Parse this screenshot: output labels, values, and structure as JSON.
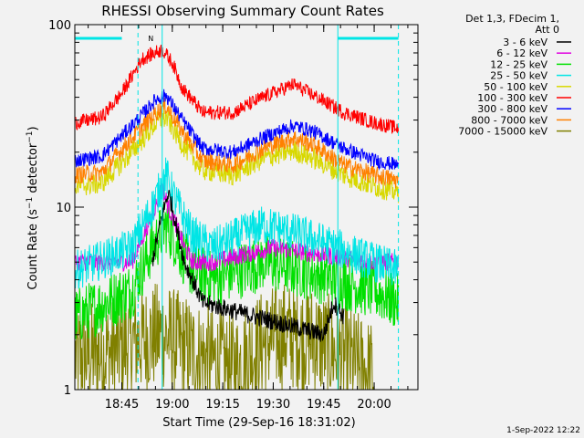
{
  "chart_data": {
    "type": "line",
    "title": "RHESSI Observing Summary Count Rates",
    "xlabel": "Start Time (29-Sep-16 18:31:02)",
    "ylabel": "Count Rate (s⁻¹ detector⁻¹)",
    "ylabel_parts": {
      "base": "Count Rate (s",
      "sup1": "−1",
      "mid": " detector",
      "sup2": "−1",
      "end": ")"
    },
    "yscale": "log",
    "ylim": [
      1,
      100
    ],
    "xlim": [
      18.5172,
      20.2167
    ],
    "x_unit": "hours (UT)",
    "x_ticks": [
      {
        "t": 18.75,
        "label": "18:45"
      },
      {
        "t": 19.0,
        "label": "19:00"
      },
      {
        "t": 19.25,
        "label": "19:15"
      },
      {
        "t": 19.5,
        "label": "19:30"
      },
      {
        "t": 19.75,
        "label": "19:45"
      },
      {
        "t": 20.0,
        "label": "20:00"
      }
    ],
    "y_ticks": [
      {
        "v": 1,
        "label": "1"
      },
      {
        "v": 10,
        "label": "10"
      },
      {
        "v": 100,
        "label": "100"
      }
    ],
    "legend_header": [
      "Det 1,3, FDecim 1,",
      "Att 0"
    ],
    "legend_position": "right",
    "timestamp": "1-Sep-2022 12:22",
    "markers": {
      "vlines_solid": [
        18.95,
        19.82
      ],
      "vlines_dashed": [
        18.83,
        20.12
      ],
      "bars": [
        [
          18.52,
          18.75
        ],
        [
          19.82,
          20.12
        ]
      ],
      "n_label": "N",
      "n_label_t": 18.88,
      "color": "#00e5e5"
    },
    "series": [
      {
        "name": "3 - 6 keV",
        "color": "#000000",
        "x": [
          18.9,
          18.95,
          18.98,
          19.0,
          19.03,
          19.06,
          19.1,
          19.15,
          19.75,
          19.8,
          19.85
        ],
        "y": [
          5,
          9,
          12,
          10,
          7,
          5,
          4,
          3,
          2,
          3,
          2.5
        ]
      },
      {
        "name": "6 - 12 keV",
        "color": "#e000e0",
        "x": [
          18.52,
          18.8,
          18.9,
          18.95,
          18.98,
          19.02,
          19.06,
          19.1,
          19.2,
          19.5,
          20.0,
          20.12
        ],
        "y": [
          5,
          5,
          9,
          13,
          10,
          8,
          6,
          5,
          5,
          6,
          5,
          5
        ]
      },
      {
        "name": "12 - 25 keV",
        "color": "#00e000",
        "x": [
          18.52,
          18.8,
          18.9,
          18.97,
          19.0,
          19.05,
          19.1,
          19.2,
          19.45,
          19.65,
          20.0,
          20.12
        ],
        "y": [
          2.5,
          3.5,
          6,
          8,
          7,
          5.5,
          4.5,
          4,
          5,
          4.5,
          3.5,
          3
        ]
      },
      {
        "name": "25 - 50 keV",
        "color": "#00e5e5",
        "x": [
          18.52,
          18.8,
          18.9,
          18.97,
          19.0,
          19.05,
          19.1,
          19.2,
          19.45,
          19.65,
          20.0,
          20.12
        ],
        "y": [
          4.5,
          6,
          10,
          15,
          12,
          9,
          7,
          6,
          8,
          7,
          5,
          4.5
        ]
      },
      {
        "name": "50 - 100 keV",
        "color": "#d8d800",
        "x": [
          18.52,
          18.65,
          18.8,
          18.92,
          18.97,
          19.05,
          19.15,
          19.3,
          19.45,
          19.6,
          19.7,
          19.85,
          20.0,
          20.12
        ],
        "y": [
          13,
          13.5,
          20,
          29,
          31,
          22,
          16,
          15,
          18.5,
          20.5,
          18.5,
          15,
          13,
          12
        ]
      },
      {
        "name": "100 - 300 keV",
        "color": "#ff0000",
        "x": [
          18.52,
          18.65,
          18.75,
          18.85,
          18.95,
          19.0,
          19.05,
          19.15,
          19.3,
          19.45,
          19.6,
          19.7,
          19.85,
          20.0,
          20.12
        ],
        "y": [
          29,
          31,
          42,
          65,
          73,
          62,
          45,
          33,
          33,
          40,
          47,
          41,
          33,
          29,
          27
        ]
      },
      {
        "name": "300 - 800 keV",
        "color": "#0000ff",
        "x": [
          18.52,
          18.65,
          18.8,
          18.92,
          18.97,
          19.05,
          19.15,
          19.3,
          19.45,
          19.6,
          19.7,
          19.85,
          20.0,
          20.12
        ],
        "y": [
          18,
          19,
          28,
          39,
          41,
          30,
          21,
          20,
          24,
          28,
          26,
          21,
          18,
          17
        ]
      },
      {
        "name": "800 - 7000 keV",
        "color": "#ff8000",
        "x": [
          18.52,
          18.65,
          18.8,
          18.92,
          18.97,
          19.05,
          19.15,
          19.3,
          19.45,
          19.6,
          19.7,
          19.85,
          20.0,
          20.12
        ],
        "y": [
          15,
          15.5,
          24,
          33,
          36,
          26,
          18,
          17,
          21,
          24,
          22,
          17,
          15,
          14
        ]
      },
      {
        "name": "7000 - 15000 keV",
        "color": "#808000",
        "x": [
          18.52,
          18.7,
          18.8,
          18.95,
          19.1,
          19.3,
          19.45,
          19.55,
          19.7,
          19.85,
          20.0
        ],
        "y": [
          1.5,
          1.6,
          1.8,
          2.0,
          1.6,
          1.3,
          1.8,
          2.0,
          1.9,
          1.5,
          1.2
        ]
      }
    ]
  }
}
